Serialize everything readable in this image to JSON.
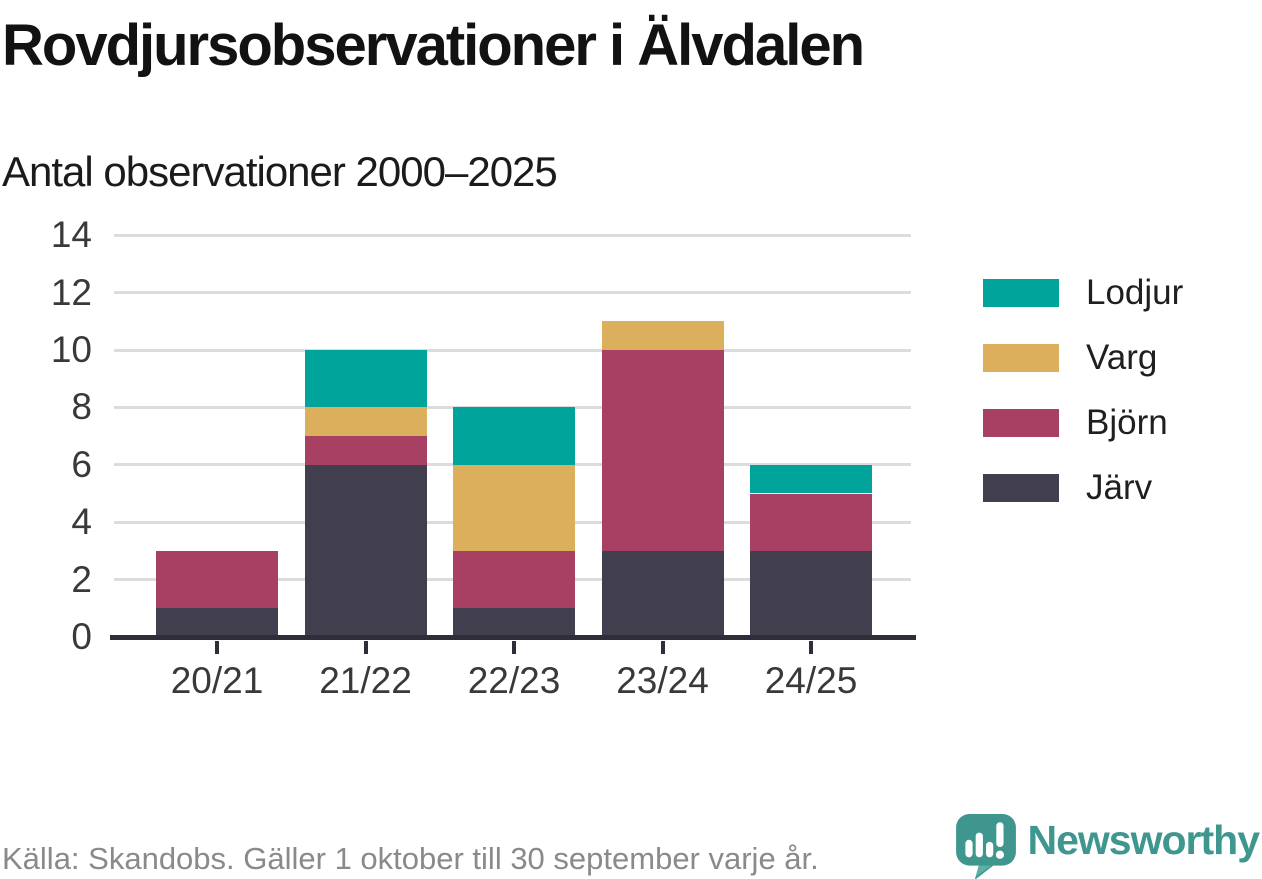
{
  "header": {
    "title": "Rovdjursobservationer i Älvdalen",
    "subtitle": "Antal observationer 2000–2025"
  },
  "chart_data": {
    "type": "bar",
    "stacked": true,
    "title": "Rovdjursobservationer i Älvdalen",
    "subtitle": "Antal observationer 2000–2025",
    "categories": [
      "20/21",
      "21/22",
      "22/23",
      "23/24",
      "24/25"
    ],
    "series": [
      {
        "name": "Järv",
        "color": "#413e4e",
        "values": [
          1,
          6,
          1,
          3,
          3
        ]
      },
      {
        "name": "Björn",
        "color": "#a74062",
        "values": [
          2,
          1,
          2,
          7,
          2
        ]
      },
      {
        "name": "Varg",
        "color": "#dcaf5c",
        "values": [
          0,
          1,
          3,
          1,
          0
        ]
      },
      {
        "name": "Lodjur",
        "color": "#00a49b",
        "values": [
          0,
          2,
          2,
          0,
          1
        ]
      }
    ],
    "totals": [
      3,
      10,
      8,
      11,
      6
    ],
    "xlabel": "",
    "ylabel": "",
    "ylim": [
      0,
      14
    ],
    "yticks": [
      0,
      2,
      4,
      6,
      8,
      10,
      12,
      14
    ],
    "grid": "horizontal",
    "legend_position": "right",
    "legend_order": [
      "Lodjur",
      "Varg",
      "Björn",
      "Järv"
    ]
  },
  "footer": {
    "source": "Källa: Skandobs. Gäller 1 oktober till 30 september varje år.",
    "brand": "Newsworthy"
  },
  "colors": {
    "lodjur": "#00a49b",
    "varg": "#dcaf5c",
    "bjorn": "#a74062",
    "jarv": "#413e4e",
    "gridline": "#dcdcdc",
    "axis": "#2f2d38",
    "footer_text": "#8a8a8a",
    "brand_teal": "#3e968f"
  }
}
